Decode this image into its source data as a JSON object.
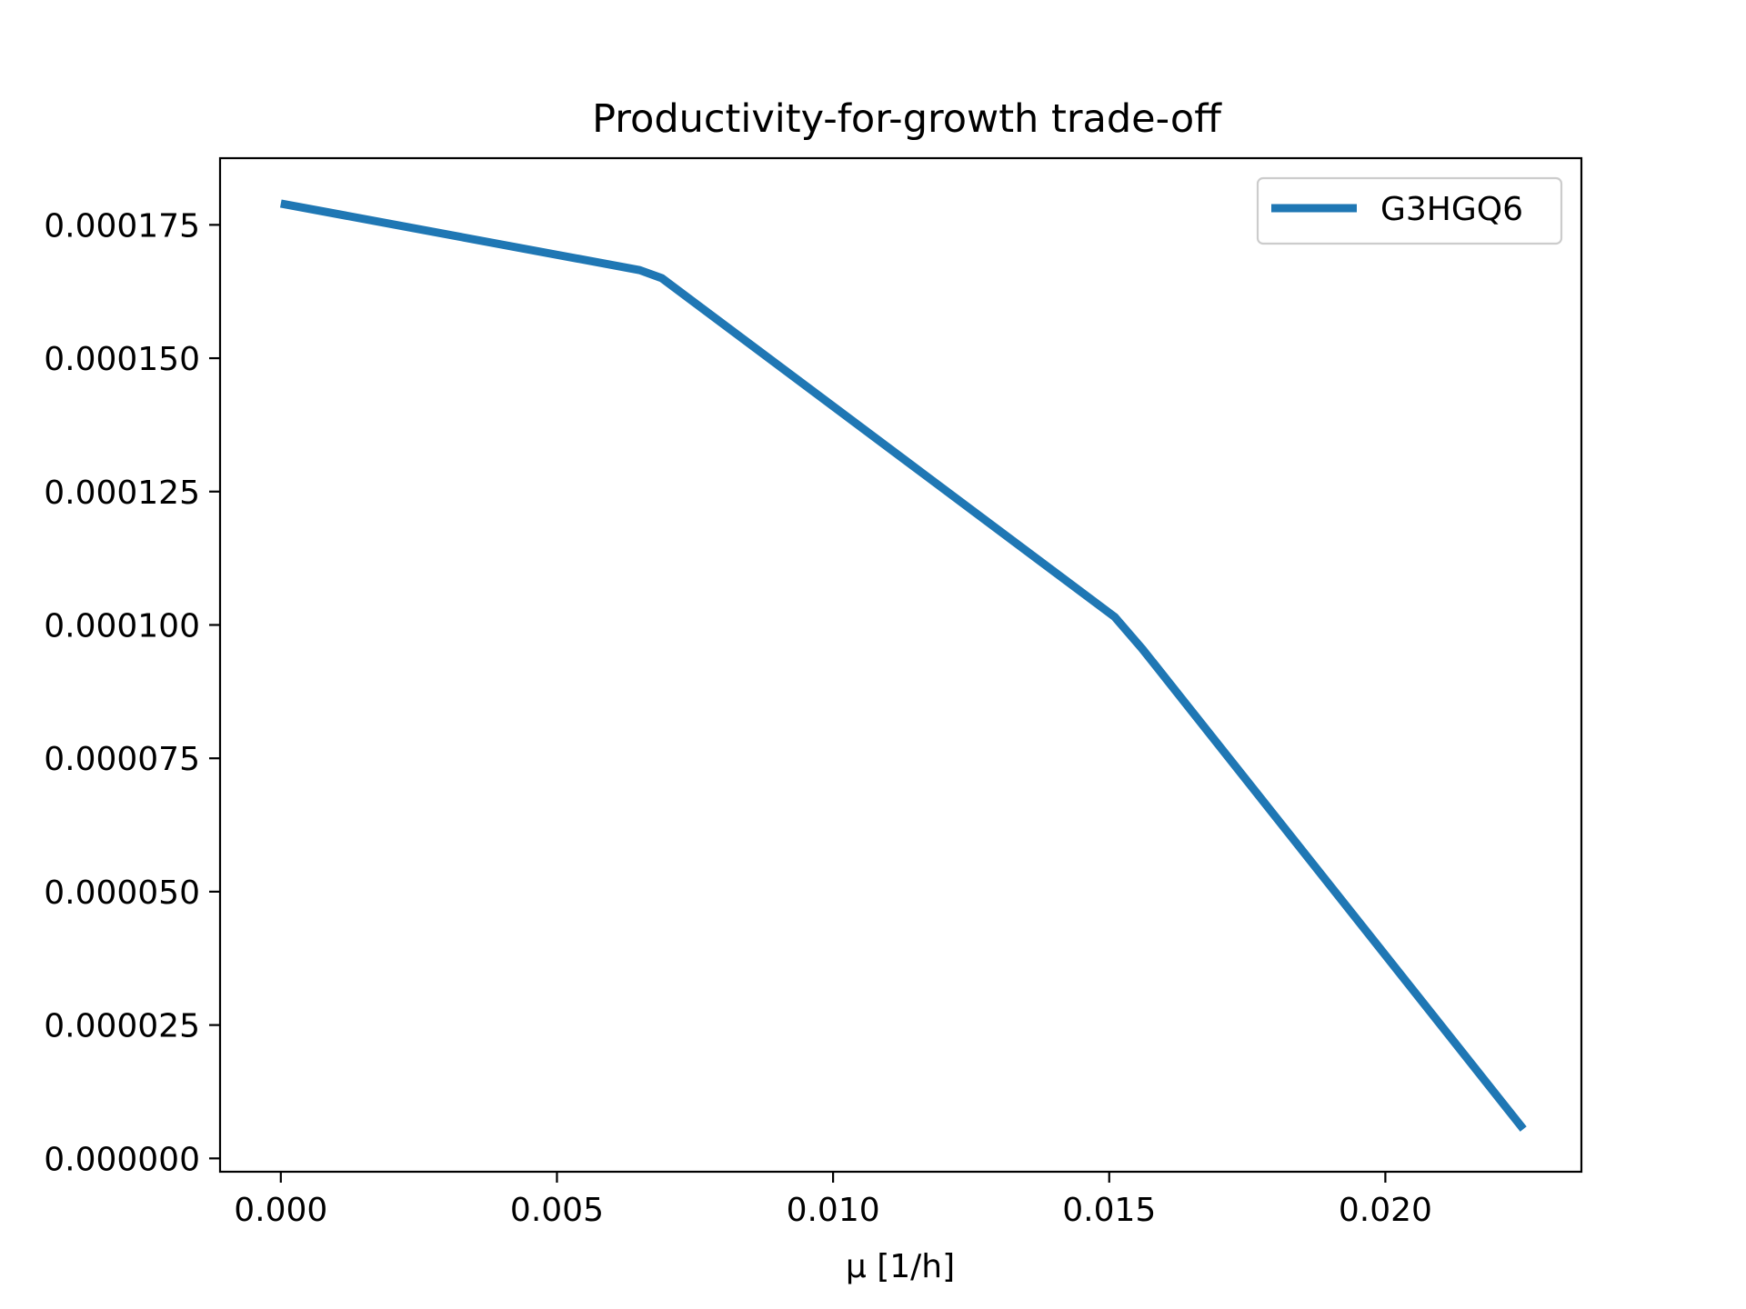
{
  "chart_data": {
    "type": "line",
    "title": "Productivity-for-growth trade-off",
    "xlabel": "μ [1/h]",
    "ylabel": "",
    "xlim": [
      -0.0011,
      0.02355
    ],
    "ylim": [
      -2.5e-06,
      0.0001875
    ],
    "x_ticks": [
      0.0,
      0.005,
      0.01,
      0.015,
      0.02
    ],
    "x_tick_labels": [
      "0.000",
      "0.005",
      "0.010",
      "0.015",
      "0.020"
    ],
    "y_ticks": [
      0.0,
      2.5e-05,
      5e-05,
      7.5e-05,
      0.0001,
      0.000125,
      0.00015,
      0.000175
    ],
    "y_tick_labels": [
      "0.000000",
      "0.000025",
      "0.000050",
      "0.000075",
      "0.000100",
      "0.000125",
      "0.000150",
      "0.000175"
    ],
    "grid": false,
    "legend_position": "top-right",
    "series": [
      {
        "name": "G3HGQ6",
        "color": "#1f77b4",
        "x": [
          0.0,
          0.0065,
          0.0069,
          0.0151,
          0.0156,
          0.0225
        ],
        "y": [
          0.000179,
          0.0001665,
          0.000165,
          0.0001015,
          9.55e-05,
          5.5e-06
        ]
      }
    ]
  }
}
